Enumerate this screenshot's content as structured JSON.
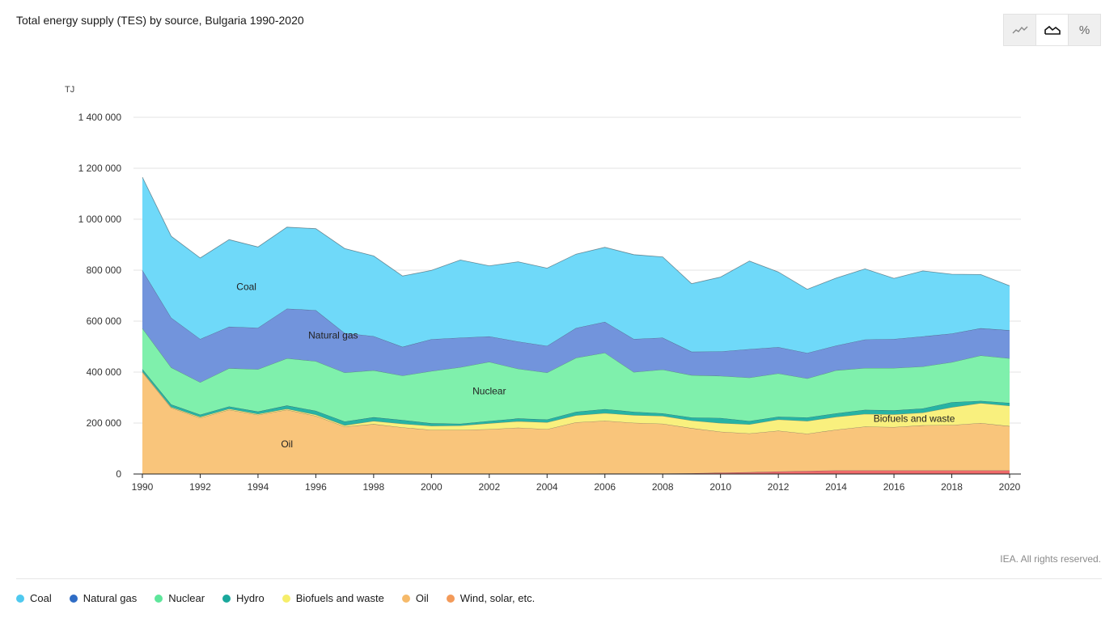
{
  "header": {
    "title": "Total energy supply (TES) by source, Bulgaria 1990-2020"
  },
  "view_toggle": {
    "options": [
      {
        "name": "line-view",
        "icon": "line-chart-icon",
        "active": false
      },
      {
        "name": "area-view",
        "icon": "area-chart-icon",
        "active": true
      },
      {
        "name": "percent-view",
        "icon": "percent-icon",
        "label": "%",
        "active": false
      }
    ]
  },
  "credit": "IEA. All rights reserved.",
  "legend": [
    {
      "label": "Coal",
      "color": "#4fc9ef"
    },
    {
      "label": "Natural gas",
      "color": "#2f6cc5"
    },
    {
      "label": "Nuclear",
      "color": "#5ee69b"
    },
    {
      "label": "Hydro",
      "color": "#1aa89c"
    },
    {
      "label": "Biofuels and waste",
      "color": "#f6ee6a"
    },
    {
      "label": "Oil",
      "color": "#f6ba6a"
    },
    {
      "label": "Wind, solar, etc.",
      "color": "#f39a59"
    }
  ],
  "chart_data": {
    "type": "area",
    "stacked": true,
    "title": "Total energy supply (TES) by source, Bulgaria 1990-2020",
    "ylabel": "TJ",
    "xlabel": "",
    "ylim": [
      0,
      1400000
    ],
    "y_ticks": [
      0,
      200000,
      400000,
      600000,
      800000,
      1000000,
      1200000,
      1400000
    ],
    "y_tick_labels": [
      "0",
      "200 000",
      "400 000",
      "600 000",
      "800 000",
      "1 000 000",
      "1 200 000",
      "1 400 000"
    ],
    "x_tick_labels": [
      "1990",
      "1992",
      "1994",
      "1996",
      "1998",
      "2000",
      "2002",
      "2004",
      "2006",
      "2008",
      "2010",
      "2012",
      "2014",
      "2016",
      "2018",
      "2020"
    ],
    "grid": true,
    "x": [
      1990,
      1991,
      1992,
      1993,
      1994,
      1995,
      1996,
      1997,
      1998,
      1999,
      2000,
      2001,
      2002,
      2003,
      2004,
      2005,
      2006,
      2007,
      2008,
      2009,
      2010,
      2011,
      2012,
      2013,
      2014,
      2015,
      2016,
      2017,
      2018,
      2019,
      2020
    ],
    "series": [
      {
        "name": "Wind, solar, etc.",
        "color": "#ef6a6a",
        "values": [
          0,
          0,
          0,
          0,
          0,
          0,
          0,
          0,
          0,
          0,
          0,
          0,
          0,
          0,
          0,
          1000,
          2000,
          2000,
          2000,
          3000,
          5000,
          7000,
          10000,
          12000,
          14000,
          14000,
          14000,
          14000,
          14000,
          14000,
          14000
        ]
      },
      {
        "name": "Oil",
        "color": "#f9c57b",
        "values": [
          400000,
          260000,
          220000,
          252000,
          232000,
          252000,
          228000,
          186000,
          196000,
          183000,
          173000,
          173000,
          176000,
          182000,
          176000,
          202000,
          207000,
          199000,
          195000,
          177000,
          161000,
          152000,
          160000,
          146000,
          160000,
          172000,
          170000,
          177000,
          178000,
          186000,
          174000
        ]
      },
      {
        "name": "Biofuels and waste",
        "color": "#f9f07e",
        "values": [
          3000,
          3000,
          4000,
          4000,
          4000,
          4000,
          5000,
          5000,
          12000,
          14000,
          16000,
          17000,
          23000,
          25000,
          27000,
          27000,
          30000,
          30000,
          31000,
          30000,
          34000,
          36000,
          44000,
          50000,
          50000,
          50000,
          50000,
          50000,
          70000,
          78000,
          80000
        ]
      },
      {
        "name": "Hydro",
        "color": "#27b3a4",
        "values": [
          9000,
          10000,
          9000,
          9000,
          9000,
          13000,
          15000,
          15000,
          15000,
          15000,
          10000,
          7000,
          9000,
          11000,
          11000,
          14000,
          16000,
          13000,
          10000,
          12000,
          20000,
          13000,
          11000,
          14000,
          14000,
          16000,
          16000,
          16000,
          20000,
          9000,
          11000
        ]
      },
      {
        "name": "Nuclear",
        "color": "#7ff0ac",
        "values": [
          160000,
          145000,
          127000,
          150000,
          166000,
          185000,
          195000,
          192000,
          184000,
          174000,
          205000,
          222000,
          232000,
          195000,
          184000,
          212000,
          221000,
          156000,
          172000,
          166000,
          165000,
          170000,
          170000,
          153000,
          169000,
          164000,
          166000,
          165000,
          157000,
          178000,
          175000
        ]
      },
      {
        "name": "Natural gas",
        "color": "#7294dc",
        "values": [
          228000,
          195000,
          170000,
          163000,
          163000,
          195000,
          200000,
          155000,
          134000,
          113000,
          125000,
          116000,
          100000,
          107000,
          105000,
          117000,
          121000,
          130000,
          125000,
          92000,
          96000,
          112000,
          103000,
          100000,
          97000,
          112000,
          114000,
          118000,
          112000,
          107000,
          110000
        ]
      },
      {
        "name": "Coal",
        "color": "#6fd9f9",
        "values": [
          365000,
          320000,
          318000,
          342000,
          317000,
          320000,
          320000,
          332000,
          315000,
          278000,
          270000,
          305000,
          277000,
          313000,
          305000,
          290000,
          293000,
          331000,
          317000,
          267000,
          292000,
          346000,
          295000,
          250000,
          265000,
          277000,
          238000,
          257000,
          233000,
          211000,
          175000
        ]
      }
    ],
    "annotations": [
      {
        "text": "Coal",
        "year": 1993.6,
        "value": 735000
      },
      {
        "text": "Natural gas",
        "year": 1996.6,
        "value": 544000
      },
      {
        "text": "Nuclear",
        "year": 2002,
        "value": 325000
      },
      {
        "text": "Biofuels and waste",
        "year": 2016.7,
        "value": 218000
      },
      {
        "text": "Oil",
        "year": 1995,
        "value": 118000
      }
    ]
  }
}
